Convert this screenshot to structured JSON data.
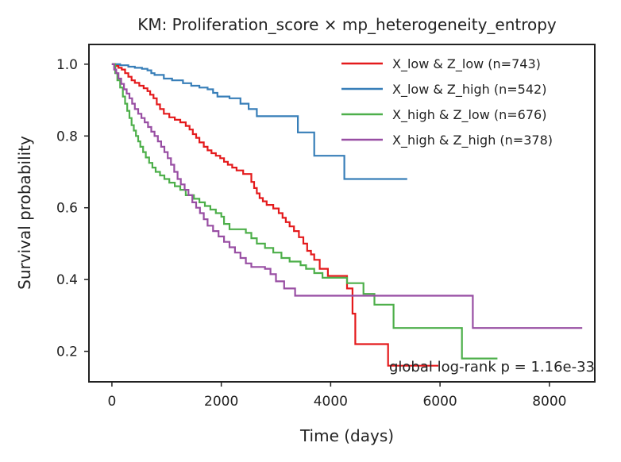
{
  "chart_data": {
    "type": "line",
    "title": "KM: Proliferation_score × mp_heterogeneity_entropy",
    "xlabel": "Time (days)",
    "ylabel": "Survival probability",
    "xlim": [
      -420,
      8830
    ],
    "ylim": [
      0.115,
      1.055
    ],
    "xticks": [
      0,
      2000,
      4000,
      6000,
      8000
    ],
    "xtick_labels": [
      "0",
      "2000",
      "4000",
      "6000",
      "8000"
    ],
    "yticks": [
      0.2,
      0.4,
      0.6,
      0.8,
      1.0
    ],
    "ytick_labels": [
      "0.2",
      "0.4",
      "0.6",
      "0.8",
      "1.0"
    ],
    "grid": false,
    "legend_position": "top-right",
    "annotation": "global log-rank p = 1.16e-33",
    "series": [
      {
        "name": "X_low & Z_low (n=743)",
        "color": "#e41a1c",
        "steps": [
          [
            0,
            1.0
          ],
          [
            60,
            0.995
          ],
          [
            120,
            0.99
          ],
          [
            180,
            0.985
          ],
          [
            240,
            0.975
          ],
          [
            300,
            0.965
          ],
          [
            360,
            0.955
          ],
          [
            420,
            0.948
          ],
          [
            500,
            0.94
          ],
          [
            580,
            0.933
          ],
          [
            650,
            0.925
          ],
          [
            700,
            0.915
          ],
          [
            760,
            0.905
          ],
          [
            820,
            0.888
          ],
          [
            880,
            0.875
          ],
          [
            950,
            0.862
          ],
          [
            1050,
            0.852
          ],
          [
            1150,
            0.845
          ],
          [
            1250,
            0.838
          ],
          [
            1350,
            0.828
          ],
          [
            1420,
            0.818
          ],
          [
            1480,
            0.805
          ],
          [
            1540,
            0.795
          ],
          [
            1600,
            0.782
          ],
          [
            1680,
            0.77
          ],
          [
            1750,
            0.76
          ],
          [
            1820,
            0.752
          ],
          [
            1900,
            0.745
          ],
          [
            1980,
            0.738
          ],
          [
            2050,
            0.728
          ],
          [
            2120,
            0.72
          ],
          [
            2200,
            0.712
          ],
          [
            2280,
            0.704
          ],
          [
            2400,
            0.694
          ],
          [
            2550,
            0.672
          ],
          [
            2600,
            0.655
          ],
          [
            2650,
            0.64
          ],
          [
            2700,
            0.627
          ],
          [
            2760,
            0.618
          ],
          [
            2830,
            0.608
          ],
          [
            2950,
            0.598
          ],
          [
            3050,
            0.585
          ],
          [
            3120,
            0.572
          ],
          [
            3180,
            0.56
          ],
          [
            3250,
            0.548
          ],
          [
            3330,
            0.535
          ],
          [
            3420,
            0.518
          ],
          [
            3500,
            0.5
          ],
          [
            3570,
            0.48
          ],
          [
            3640,
            0.47
          ],
          [
            3700,
            0.455
          ],
          [
            3800,
            0.43
          ],
          [
            3950,
            0.41
          ],
          [
            4300,
            0.375
          ],
          [
            4400,
            0.305
          ],
          [
            4450,
            0.22
          ],
          [
            5050,
            0.16
          ],
          [
            5200,
            0.16
          ],
          [
            5970,
            0.16
          ]
        ]
      },
      {
        "name": "X_low & Z_high (n=542)",
        "color": "#377eb8",
        "steps": [
          [
            0,
            1.0
          ],
          [
            150,
            0.997
          ],
          [
            300,
            0.993
          ],
          [
            420,
            0.99
          ],
          [
            550,
            0.987
          ],
          [
            650,
            0.983
          ],
          [
            720,
            0.975
          ],
          [
            780,
            0.97
          ],
          [
            950,
            0.96
          ],
          [
            1100,
            0.955
          ],
          [
            1300,
            0.947
          ],
          [
            1450,
            0.94
          ],
          [
            1600,
            0.935
          ],
          [
            1750,
            0.93
          ],
          [
            1850,
            0.92
          ],
          [
            1930,
            0.91
          ],
          [
            2150,
            0.905
          ],
          [
            2350,
            0.89
          ],
          [
            2500,
            0.875
          ],
          [
            2650,
            0.855
          ],
          [
            3400,
            0.81
          ],
          [
            3700,
            0.745
          ],
          [
            4250,
            0.68
          ],
          [
            5400,
            0.68
          ]
        ]
      },
      {
        "name": "X_high & Z_low (n=676)",
        "color": "#4daf4a",
        "steps": [
          [
            0,
            1.0
          ],
          [
            60,
            0.975
          ],
          [
            100,
            0.955
          ],
          [
            150,
            0.935
          ],
          [
            200,
            0.91
          ],
          [
            240,
            0.89
          ],
          [
            280,
            0.87
          ],
          [
            320,
            0.85
          ],
          [
            360,
            0.83
          ],
          [
            400,
            0.815
          ],
          [
            440,
            0.8
          ],
          [
            480,
            0.785
          ],
          [
            520,
            0.77
          ],
          [
            570,
            0.755
          ],
          [
            620,
            0.74
          ],
          [
            680,
            0.725
          ],
          [
            740,
            0.712
          ],
          [
            800,
            0.7
          ],
          [
            880,
            0.69
          ],
          [
            960,
            0.68
          ],
          [
            1050,
            0.67
          ],
          [
            1150,
            0.66
          ],
          [
            1250,
            0.65
          ],
          [
            1350,
            0.635
          ],
          [
            1500,
            0.625
          ],
          [
            1600,
            0.615
          ],
          [
            1700,
            0.605
          ],
          [
            1800,
            0.595
          ],
          [
            1900,
            0.585
          ],
          [
            2000,
            0.575
          ],
          [
            2050,
            0.555
          ],
          [
            2150,
            0.54
          ],
          [
            2450,
            0.53
          ],
          [
            2550,
            0.515
          ],
          [
            2650,
            0.5
          ],
          [
            2800,
            0.488
          ],
          [
            2950,
            0.475
          ],
          [
            3100,
            0.46
          ],
          [
            3250,
            0.45
          ],
          [
            3450,
            0.44
          ],
          [
            3550,
            0.43
          ],
          [
            3700,
            0.418
          ],
          [
            3850,
            0.405
          ],
          [
            4300,
            0.39
          ],
          [
            4600,
            0.36
          ],
          [
            4800,
            0.33
          ],
          [
            5150,
            0.265
          ],
          [
            6400,
            0.18
          ],
          [
            7050,
            0.18
          ]
        ]
      },
      {
        "name": "X_high & Z_high (n=378)",
        "color": "#984ea3",
        "steps": [
          [
            0,
            1.0
          ],
          [
            40,
            0.985
          ],
          [
            80,
            0.975
          ],
          [
            120,
            0.96
          ],
          [
            170,
            0.945
          ],
          [
            220,
            0.93
          ],
          [
            270,
            0.918
          ],
          [
            320,
            0.905
          ],
          [
            370,
            0.89
          ],
          [
            420,
            0.875
          ],
          [
            480,
            0.862
          ],
          [
            540,
            0.85
          ],
          [
            600,
            0.838
          ],
          [
            660,
            0.825
          ],
          [
            720,
            0.812
          ],
          [
            780,
            0.8
          ],
          [
            840,
            0.785
          ],
          [
            900,
            0.77
          ],
          [
            960,
            0.755
          ],
          [
            1020,
            0.738
          ],
          [
            1080,
            0.72
          ],
          [
            1140,
            0.7
          ],
          [
            1200,
            0.68
          ],
          [
            1260,
            0.665
          ],
          [
            1330,
            0.65
          ],
          [
            1400,
            0.635
          ],
          [
            1470,
            0.615
          ],
          [
            1540,
            0.6
          ],
          [
            1610,
            0.585
          ],
          [
            1680,
            0.568
          ],
          [
            1750,
            0.55
          ],
          [
            1850,
            0.535
          ],
          [
            1950,
            0.52
          ],
          [
            2050,
            0.505
          ],
          [
            2150,
            0.49
          ],
          [
            2250,
            0.475
          ],
          [
            2350,
            0.46
          ],
          [
            2450,
            0.445
          ],
          [
            2550,
            0.435
          ],
          [
            2800,
            0.43
          ],
          [
            2900,
            0.415
          ],
          [
            3000,
            0.395
          ],
          [
            3150,
            0.375
          ],
          [
            3350,
            0.355
          ],
          [
            6600,
            0.265
          ],
          [
            8600,
            0.265
          ]
        ]
      }
    ]
  }
}
